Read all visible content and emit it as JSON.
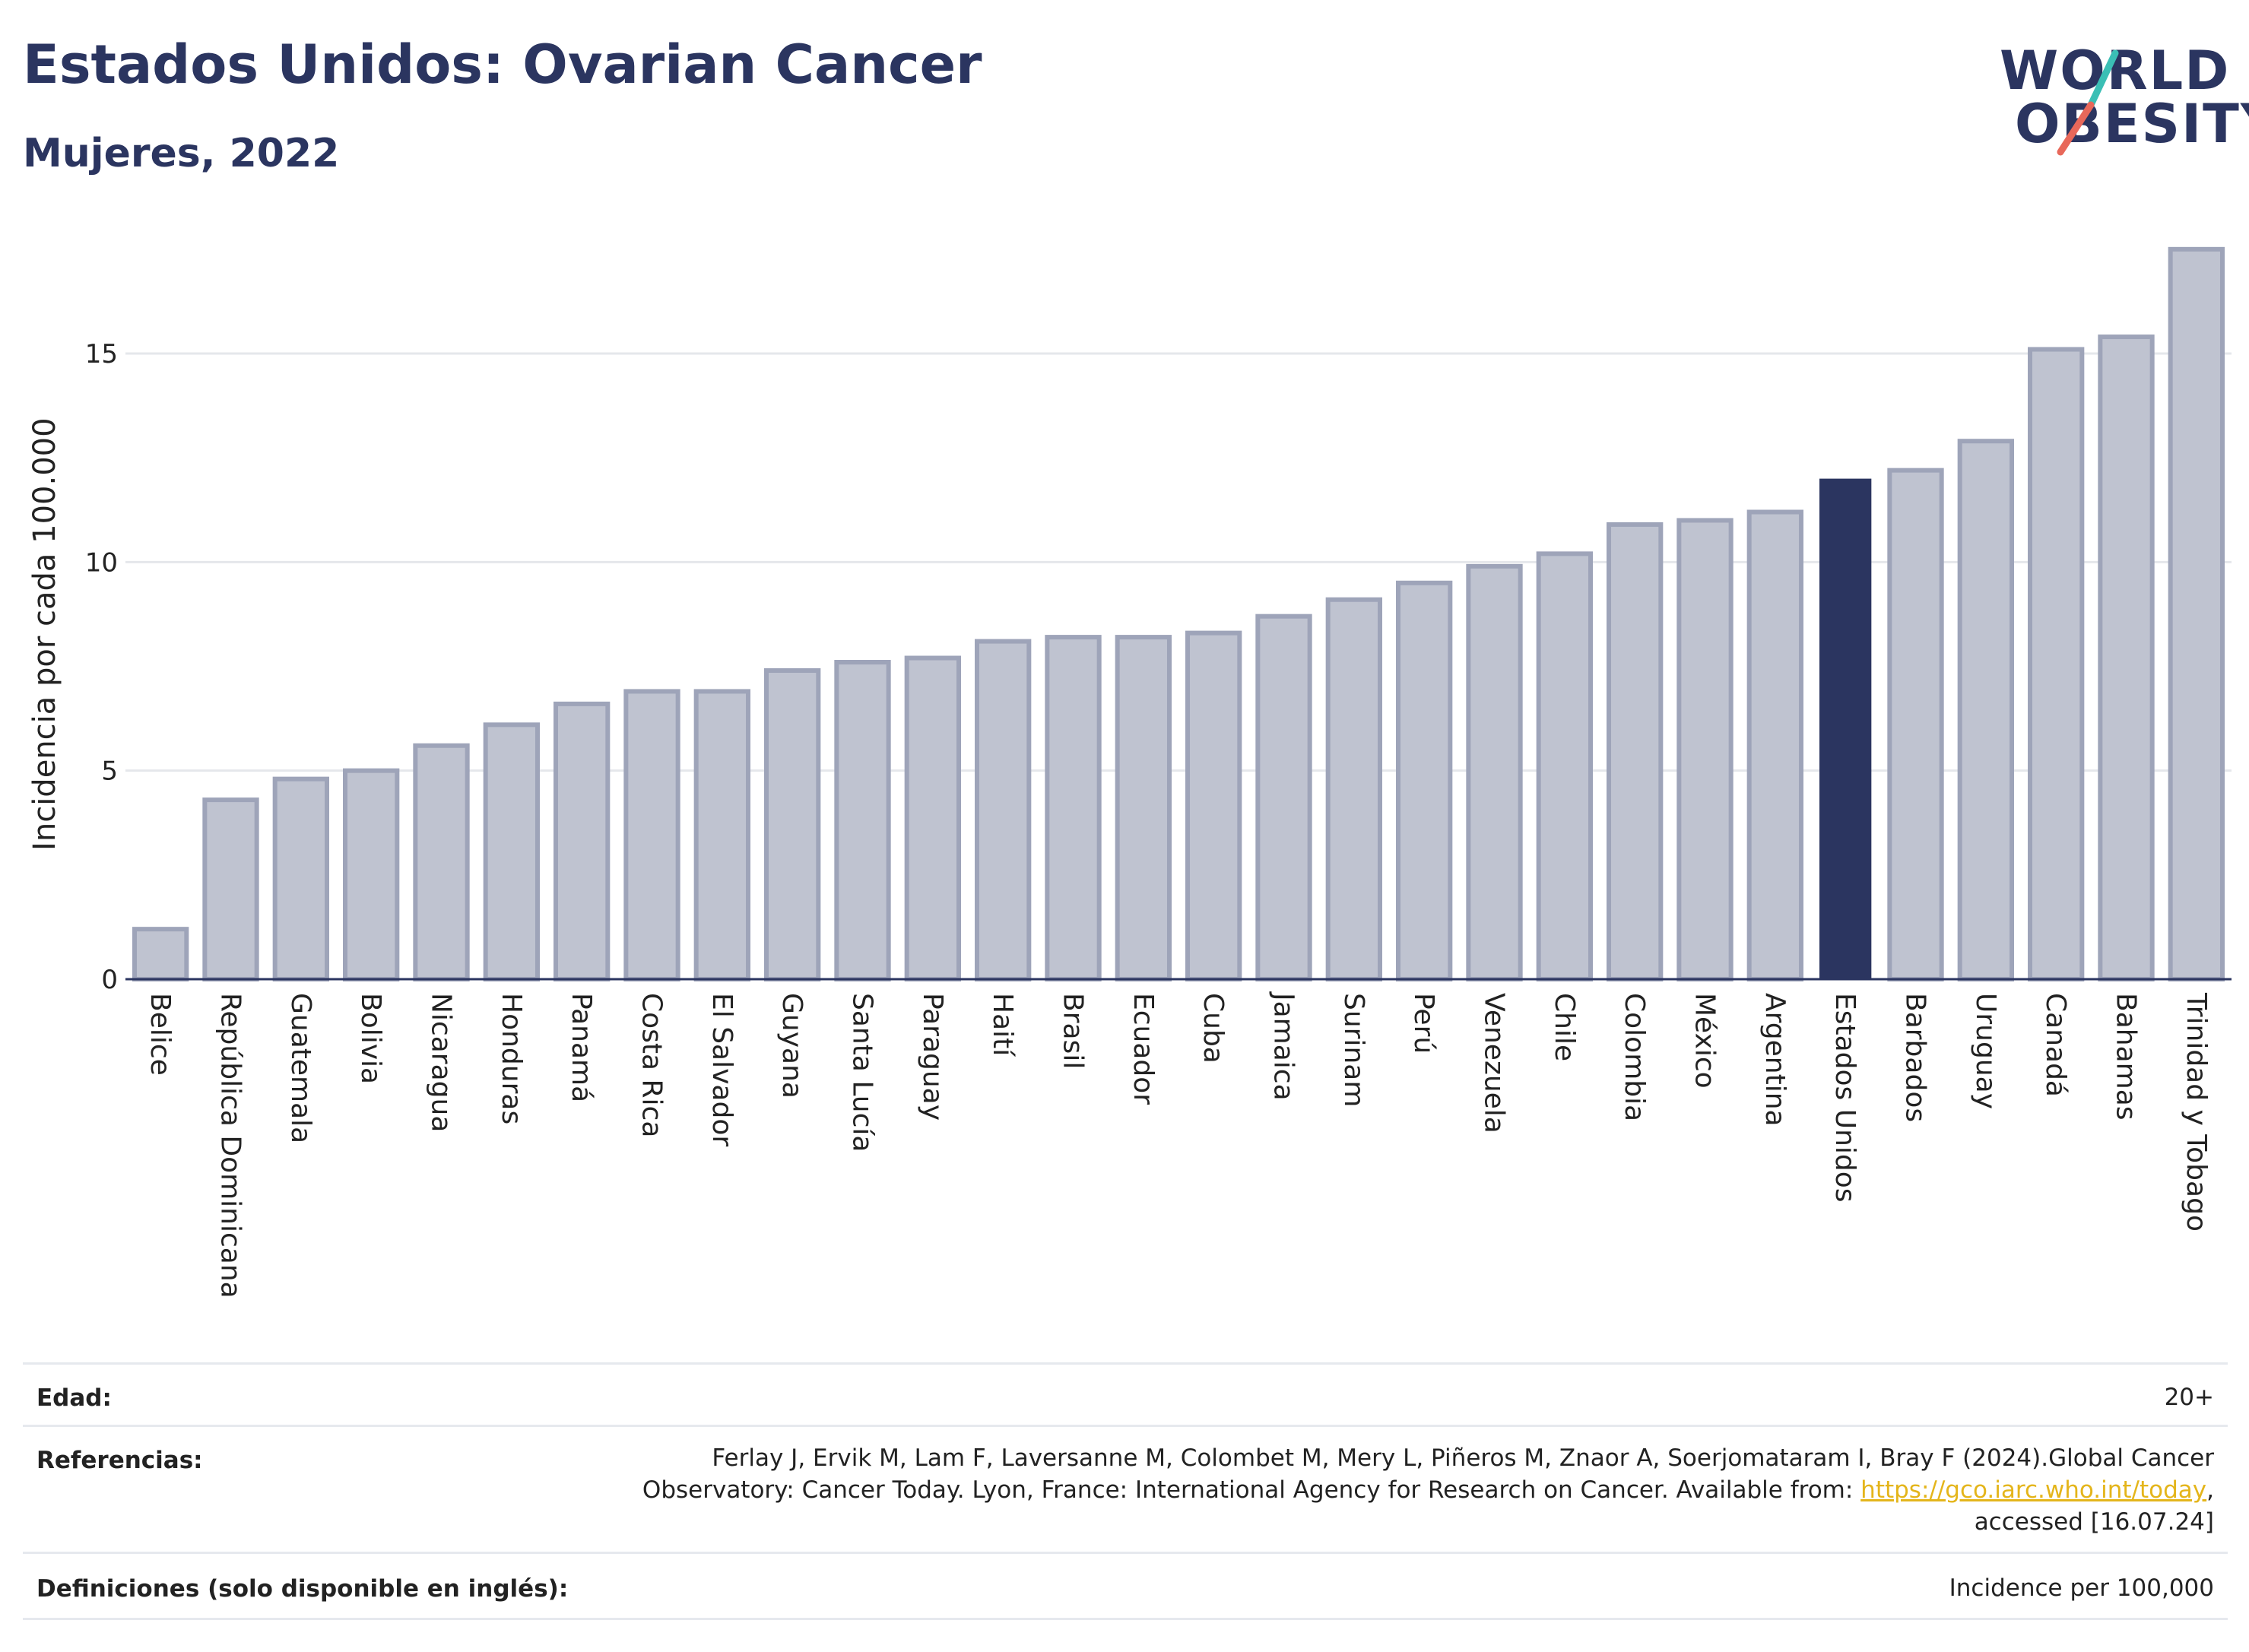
{
  "header": {
    "title": "Estados Unidos: Ovarian Cancer",
    "subtitle": "Mujeres, 2022"
  },
  "logo": {
    "line1": "WORLD",
    "line2": "OBESITY",
    "icon": "world-obesity-logo-slash",
    "colors": {
      "text": "#2b3560",
      "slash_top": "#3bbfb5",
      "slash_bottom": "#e8685a"
    }
  },
  "colors": {
    "bar": "#bfc3d0",
    "bar_border": "#9ea4b9",
    "highlight": "#2b3560",
    "grid": "#e5e7eb",
    "axis": "#2b3560"
  },
  "chart_data": {
    "type": "bar",
    "ylabel": "Incidencia por cada 100.000",
    "ylim": [
      0,
      18
    ],
    "yticks": [
      0,
      5,
      10,
      15
    ],
    "grid": true,
    "highlight_category": "Estados Unidos",
    "categories": [
      "Belice",
      "República Dominicana",
      "Guatemala",
      "Bolivia",
      "Nicaragua",
      "Honduras",
      "Panamá",
      "Costa Rica",
      "El Salvador",
      "Guyana",
      "Santa Lucía",
      "Paraguay",
      "Haití",
      "Brasil",
      "Ecuador",
      "Cuba",
      "Jamaica",
      "Surinam",
      "Perú",
      "Venezuela",
      "Chile",
      "Colombia",
      "México",
      "Argentina",
      "Estados Unidos",
      "Barbados",
      "Uruguay",
      "Canadá",
      "Bahamas",
      "Trinidad y Tobago"
    ],
    "values": [
      1.2,
      4.3,
      4.8,
      5.0,
      5.6,
      6.1,
      6.6,
      6.9,
      6.9,
      7.4,
      7.6,
      7.7,
      8.1,
      8.2,
      8.2,
      8.3,
      8.7,
      9.1,
      9.5,
      9.9,
      10.2,
      10.9,
      11.0,
      11.2,
      12.0,
      12.2,
      12.9,
      15.1,
      15.4,
      17.5
    ]
  },
  "footer": {
    "age_label": "Edad:",
    "age_value": "20+",
    "ref_label": "Referencias:",
    "ref_line1": "Ferlay J, Ervik M, Lam F, Laversanne M, Colombet M, Mery L, Piñeros M, Znaor A, Soerjomataram I, Bray F (2024).Global Cancer",
    "ref_line2_before": "Observatory: Cancer Today. Lyon, France: International Agency for Research on Cancer. Available from: ",
    "ref_link": "https://gco.iarc.who.int/today",
    "ref_line2_after": ",",
    "ref_line3": "accessed [16.07.24]",
    "def_label": "Definiciones (solo disponible en inglés):",
    "def_value": "Incidence per 100,000"
  }
}
